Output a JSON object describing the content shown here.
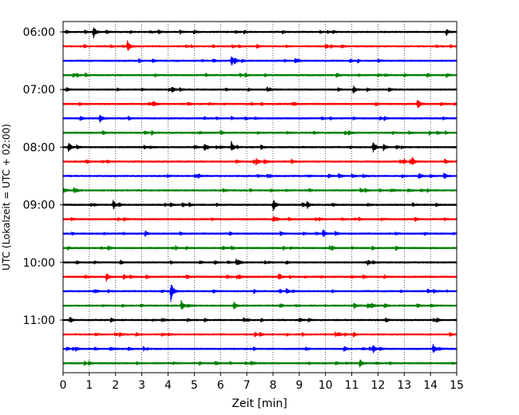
{
  "chart_data": {
    "type": "line",
    "title": "",
    "xlabel": "Zeit  [min]",
    "ylabel": "UTC (Lokalzeit = UTC + 02:00)",
    "xlim": [
      0,
      15
    ],
    "x_ticks": [
      "0",
      "1",
      "2",
      "3",
      "4",
      "5",
      "6",
      "7",
      "8",
      "9",
      "10",
      "11",
      "12",
      "13",
      "14",
      "15"
    ],
    "y_ticks": [
      "06:00",
      "07:00",
      "08:00",
      "09:00",
      "10:00",
      "11:00"
    ],
    "trace_interval_min": 15,
    "trace_colors": [
      "#000000",
      "#ff0000",
      "#0000ff",
      "#008000"
    ],
    "grid": "vertical dotted at each minute",
    "traces": [
      {
        "start": "06:00",
        "color": "#000000",
        "events": [
          {
            "t": 1.15,
            "amp": 1.0
          },
          {
            "t": 14.6,
            "amp": 0.5
          }
        ]
      },
      {
        "start": "06:15",
        "color": "#ff0000",
        "events": [
          {
            "t": 2.45,
            "amp": 1.0
          },
          {
            "t": 10.0,
            "amp": 0.4
          }
        ]
      },
      {
        "start": "06:30",
        "color": "#0000ff",
        "events": [
          {
            "t": 6.4,
            "amp": 0.7
          },
          {
            "t": 3.4,
            "amp": 0.3
          }
        ]
      },
      {
        "start": "06:45",
        "color": "#008000",
        "events": [
          {
            "t": 14.6,
            "amp": 0.3
          }
        ]
      },
      {
        "start": "07:00",
        "color": "#000000",
        "events": [
          {
            "t": 11.05,
            "amp": 0.7
          }
        ]
      },
      {
        "start": "07:15",
        "color": "#ff0000",
        "events": [
          {
            "t": 13.5,
            "amp": 0.6
          },
          {
            "t": 3.4,
            "amp": 0.3
          }
        ]
      },
      {
        "start": "07:30",
        "color": "#0000ff",
        "events": [
          {
            "t": 1.4,
            "amp": 0.6
          }
        ]
      },
      {
        "start": "07:45",
        "color": "#008000",
        "events": [
          {
            "t": 3.1,
            "amp": 0.3
          }
        ]
      },
      {
        "start": "08:00",
        "color": "#000000",
        "events": [
          {
            "t": 0.2,
            "amp": 1.0
          },
          {
            "t": 6.4,
            "amp": 0.9
          },
          {
            "t": 11.8,
            "amp": 1.0
          },
          {
            "t": 5.4,
            "amp": 0.4
          },
          {
            "t": 12.2,
            "amp": 0.5
          }
        ]
      },
      {
        "start": "08:15",
        "color": "#ff0000",
        "events": [
          {
            "t": 13.3,
            "amp": 0.6
          },
          {
            "t": 8.7,
            "amp": 0.3
          }
        ]
      },
      {
        "start": "08:30",
        "color": "#0000ff",
        "events": [
          {
            "t": 14.5,
            "amp": 0.6
          },
          {
            "t": 10.5,
            "amp": 0.4
          }
        ]
      },
      {
        "start": "08:45",
        "color": "#008000",
        "events": [
          {
            "t": 0.4,
            "amp": 0.4
          },
          {
            "t": 11.5,
            "amp": 0.3
          }
        ]
      },
      {
        "start": "09:00",
        "color": "#000000",
        "events": [
          {
            "t": 1.9,
            "amp": 0.9
          },
          {
            "t": 8.0,
            "amp": 1.0
          },
          {
            "t": 9.3,
            "amp": 0.6
          }
        ]
      },
      {
        "start": "09:15",
        "color": "#ff0000",
        "events": [
          {
            "t": 8.0,
            "amp": 0.5
          }
        ]
      },
      {
        "start": "09:30",
        "color": "#0000ff",
        "events": [
          {
            "t": 9.9,
            "amp": 0.7
          }
        ]
      },
      {
        "start": "09:45",
        "color": "#008000",
        "events": [
          {
            "t": 6.4,
            "amp": 0.3
          }
        ]
      },
      {
        "start": "10:00",
        "color": "#000000",
        "events": [
          {
            "t": 6.6,
            "amp": 0.5
          }
        ]
      },
      {
        "start": "10:15",
        "color": "#ff0000",
        "events": [
          {
            "t": 1.65,
            "amp": 0.7
          },
          {
            "t": 8.2,
            "amp": 0.5
          },
          {
            "t": 2.3,
            "amp": 0.4
          }
        ]
      },
      {
        "start": "10:30",
        "color": "#0000ff",
        "events": [
          {
            "t": 4.1,
            "amp": 1.8
          },
          {
            "t": 8.5,
            "amp": 0.5
          }
        ]
      },
      {
        "start": "10:45",
        "color": "#008000",
        "events": [
          {
            "t": 4.5,
            "amp": 0.8
          },
          {
            "t": 6.5,
            "amp": 0.8
          },
          {
            "t": 11.6,
            "amp": 0.4
          }
        ]
      },
      {
        "start": "11:00",
        "color": "#000000",
        "events": [
          {
            "t": 12.3,
            "amp": 0.3
          }
        ]
      },
      {
        "start": "11:15",
        "color": "#ff0000",
        "events": [
          {
            "t": 7.5,
            "amp": 0.3
          }
        ]
      },
      {
        "start": "11:30",
        "color": "#0000ff",
        "events": [
          {
            "t": 11.8,
            "amp": 0.7
          },
          {
            "t": 14.1,
            "amp": 0.8
          },
          {
            "t": 10.7,
            "amp": 0.5
          }
        ]
      },
      {
        "start": "11:45",
        "color": "#008000",
        "events": [
          {
            "t": 11.3,
            "amp": 0.7
          },
          {
            "t": 5.8,
            "amp": 0.4
          }
        ]
      }
    ]
  }
}
